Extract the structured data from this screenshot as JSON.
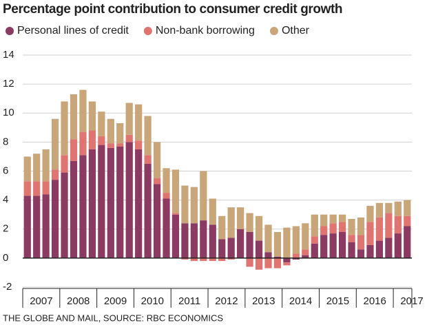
{
  "chart_data": {
    "type": "stacked-bar",
    "title": "Percentage point contribution to consumer credit growth",
    "source": "THE GLOBE AND MAIL, SOURCE: RBC ECONOMICS",
    "categories": [
      "2007",
      null,
      null,
      null,
      "2008",
      null,
      null,
      null,
      "2009",
      null,
      null,
      null,
      "2010",
      null,
      null,
      null,
      "2011",
      null,
      null,
      null,
      "2012",
      null,
      null,
      null,
      "2013",
      null,
      null,
      null,
      "2014",
      null,
      null,
      null,
      "2015",
      null,
      null,
      null,
      "2016",
      null,
      null,
      null,
      "2017",
      null
    ],
    "series": [
      {
        "name": "Personal lines of credit",
        "color": "#8b3a62",
        "values": [
          4.3,
          4.3,
          4.4,
          5.4,
          5.9,
          6.7,
          7.1,
          7.5,
          7.8,
          7.6,
          7.7,
          8.0,
          7.5,
          6.5,
          5.1,
          4.1,
          3.0,
          2.4,
          2.4,
          2.6,
          2.3,
          1.3,
          1.4,
          2.0,
          1.8,
          1.2,
          0.4,
          0.1,
          -0.3,
          -0.1,
          0.2,
          1.0,
          1.6,
          1.7,
          1.8,
          1.1,
          0.6,
          0.9,
          1.2,
          1.4,
          1.7,
          2.2
        ]
      },
      {
        "name": "Non-bank borrowing",
        "color": "#e07470",
        "values": [
          1.0,
          1.0,
          0.9,
          0.7,
          1.2,
          1.5,
          1.6,
          1.3,
          0.6,
          0.3,
          0.2,
          0.5,
          0.6,
          0.6,
          0.4,
          0.4,
          0.1,
          -0.1,
          -0.2,
          -0.2,
          -0.2,
          -0.2,
          -0.1,
          0.0,
          -0.6,
          -0.8,
          -0.7,
          -0.7,
          -0.2,
          0.3,
          0.4,
          0.5,
          0.6,
          0.7,
          0.7,
          0.5,
          1.0,
          1.6,
          1.6,
          1.7,
          1.2,
          0.7
        ]
      },
      {
        "name": "Other",
        "color": "#c9a57a",
        "values": [
          1.7,
          1.9,
          2.2,
          3.5,
          3.7,
          3.1,
          2.9,
          2.0,
          1.7,
          1.7,
          1.4,
          2.2,
          2.5,
          2.7,
          2.5,
          1.7,
          3.0,
          2.6,
          2.5,
          3.4,
          1.8,
          1.6,
          2.1,
          1.5,
          1.3,
          1.7,
          1.9,
          1.7,
          2.1,
          1.9,
          1.8,
          1.5,
          0.8,
          0.6,
          0.5,
          1.1,
          1.2,
          1.1,
          1.0,
          0.7,
          1.0,
          1.1
        ]
      }
    ],
    "ylim": [
      -2,
      14
    ],
    "yticks": [
      -2,
      0,
      2,
      4,
      6,
      8,
      10,
      12,
      14
    ],
    "grid": true
  }
}
